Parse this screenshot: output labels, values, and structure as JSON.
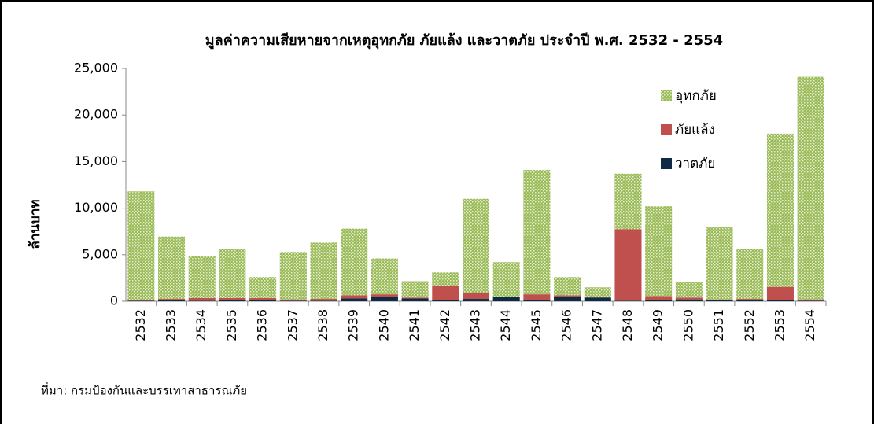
{
  "chart_data": {
    "type": "bar",
    "stacked": true,
    "title": "มูลค่าความเสียหายจากเหตุอุทกภัย ภัยแล้ง และวาตภัย ประจำปี พ.ศ. 2532 - 2554",
    "y_label": "ล้านบาท",
    "source": "ที่มา: กรมป้องกันและบรรเทาสาธารณภัย",
    "categories": [
      "2532",
      "2533",
      "2534",
      "2535",
      "2536",
      "2537",
      "2538",
      "2539",
      "2540",
      "2541",
      "2542",
      "2543",
      "2544",
      "2545",
      "2546",
      "2547",
      "2548",
      "2549",
      "2550",
      "2551",
      "2552",
      "2553",
      "2554"
    ],
    "series": [
      {
        "name": "วาตภัย",
        "color": "#0f2a44",
        "values": [
          50,
          150,
          50,
          150,
          150,
          50,
          50,
          300,
          500,
          300,
          100,
          250,
          450,
          150,
          450,
          400,
          50,
          100,
          200,
          150,
          150,
          150,
          50
        ]
      },
      {
        "name": "ภัยแล้ง",
        "color": "#c0504d",
        "values": [
          50,
          100,
          300,
          200,
          200,
          150,
          200,
          350,
          250,
          100,
          1600,
          600,
          50,
          600,
          200,
          100,
          7700,
          450,
          200,
          50,
          100,
          1400,
          150
        ]
      },
      {
        "name": "อุทกภัย",
        "color": "#9bbb59",
        "values": [
          11700,
          6700,
          4550,
          5250,
          2250,
          5100,
          6050,
          7150,
          3850,
          1750,
          1400,
          10150,
          3700,
          13350,
          1950,
          1000,
          5950,
          9650,
          1700,
          7800,
          5350,
          16450,
          23900
        ]
      }
    ],
    "ylim": [
      0,
      25000
    ],
    "yticks": [
      0,
      {
        "value": 5000,
        "label": "5,000"
      },
      {
        "value": 10000,
        "label": "10,000"
      },
      {
        "value": 15000,
        "label": "15,000"
      },
      {
        "value": 20000,
        "label": "20,000"
      },
      {
        "value": 25000,
        "label": "25,000"
      }
    ],
    "legend": "upper right"
  }
}
